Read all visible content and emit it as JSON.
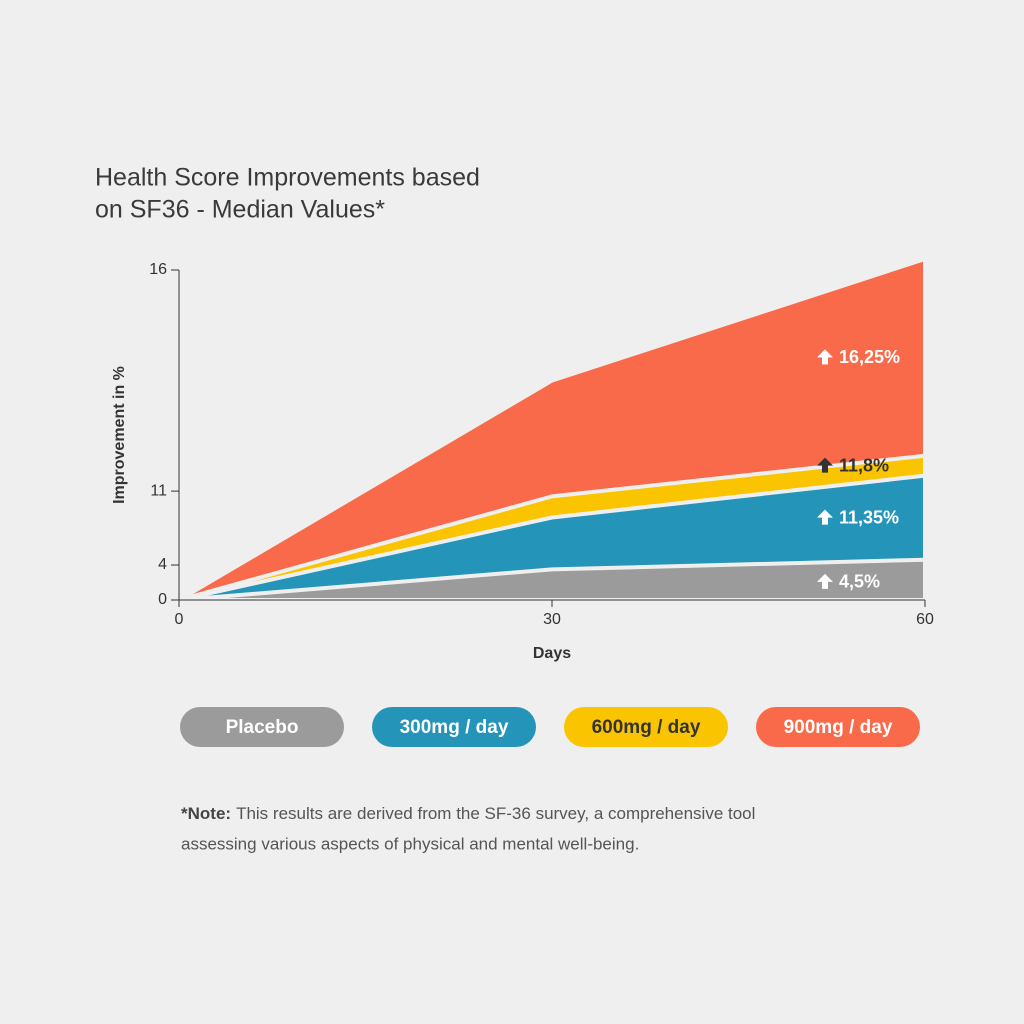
{
  "chart_data": {
    "type": "area",
    "title": [
      "Health Score Improvements based",
      "on SF36 - Median Values*"
    ],
    "ylabel": "Improvement in %",
    "xlabel": "Days",
    "x": [
      0,
      30,
      60
    ],
    "xlim": [
      0,
      60
    ],
    "xticks": [
      0,
      30,
      60
    ],
    "ylim": [
      0,
      16
    ],
    "yticks": [
      0,
      4,
      11,
      16
    ],
    "series": [
      {
        "name": "Placebo",
        "color": "#9b9b9b",
        "values": [
          0,
          3.5,
          4.5
        ],
        "value_labels": [
          null,
          null,
          "4,5%"
        ]
      },
      {
        "name": "300mg / day",
        "color": "#2494b8",
        "values": [
          0,
          8.5,
          11.35
        ],
        "value_labels": [
          null,
          null,
          "11,35%"
        ]
      },
      {
        "name": "600mg / day",
        "color": "#fbc400",
        "values": [
          0,
          10.5,
          11.8
        ],
        "value_labels": [
          null,
          null,
          "11,8%"
        ]
      },
      {
        "name": "900mg / day",
        "color": "#f96a4a",
        "values": [
          0,
          13.5,
          16.25
        ],
        "value_labels": [
          null,
          null,
          "16,25%"
        ]
      }
    ]
  },
  "note": {
    "label": "*Note:",
    "lines": [
      "This results are derived from the SF-36 survey, a comprehensive tool",
      "assessing various aspects of physical and mental well-being."
    ]
  }
}
